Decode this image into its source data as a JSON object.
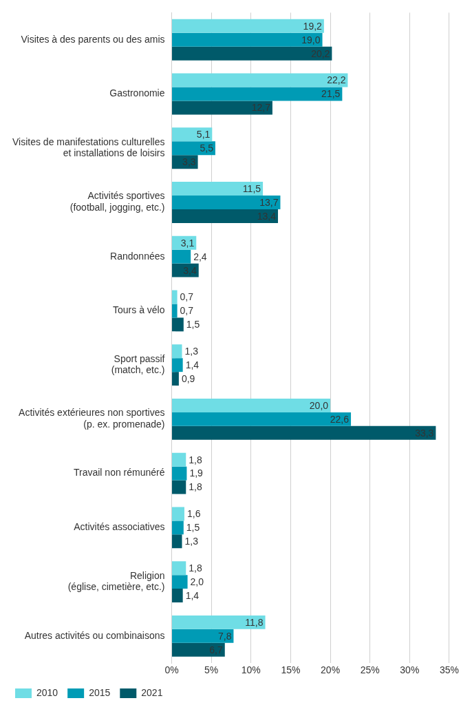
{
  "chart_data": {
    "type": "bar",
    "orientation": "horizontal",
    "categories": [
      "Visites à des parents ou des amis",
      "Gastronomie",
      "Visites de manifestations culturelles\net installations de loisirs",
      "Activités sportives\n(football, jogging, etc.)",
      "Randonnées",
      "Tours à vélo",
      "Sport passif\n(match, etc.)",
      "Activités extérieures non sportives\n(p. ex. promenade)",
      "Travail non rémunéré",
      "Activités associatives",
      "Religion\n(église, cimetière, etc.)",
      "Autres activités ou combinaisons"
    ],
    "series": [
      {
        "name": "2010",
        "color": "#6fdde5",
        "values": [
          19.2,
          22.2,
          5.1,
          11.5,
          3.1,
          0.7,
          1.3,
          20.0,
          1.8,
          1.6,
          1.8,
          11.8
        ],
        "value_labels": [
          "19,2",
          "22,2",
          "5,1",
          "11,5",
          "3,1",
          "0,7",
          "1,3",
          "20,0",
          "1,8",
          "1,6",
          "1,8",
          "11,8"
        ]
      },
      {
        "name": "2015",
        "color": "#009bb5",
        "values": [
          19.0,
          21.5,
          5.5,
          13.7,
          2.4,
          0.7,
          1.4,
          22.6,
          1.9,
          1.5,
          2.0,
          7.8
        ],
        "value_labels": [
          "19,0",
          "21,5",
          "5,5",
          "13,7",
          "2,4",
          "0,7",
          "1,4",
          "22,6",
          "1,9",
          "1,5",
          "2,0",
          "7,8"
        ]
      },
      {
        "name": "2021",
        "color": "#005a6a",
        "values": [
          20.2,
          12.7,
          3.3,
          13.4,
          3.4,
          1.5,
          0.9,
          33.3,
          1.8,
          1.3,
          1.4,
          6.7
        ],
        "value_labels": [
          "20,2",
          "12,7",
          "3,3",
          "13,4",
          "3,4",
          "1,5",
          "0,9",
          "33,3",
          "1,8",
          "1,3",
          "1,4",
          "6,7"
        ]
      }
    ],
    "xlim": [
      0,
      35
    ],
    "xticks": [
      {
        "value": 0,
        "label": "0%"
      },
      {
        "value": 5,
        "label": "5%"
      },
      {
        "value": 10,
        "label": "10%"
      },
      {
        "value": 15,
        "label": "15%"
      },
      {
        "value": 20,
        "label": "20%"
      },
      {
        "value": 25,
        "label": "25%"
      },
      {
        "value": 30,
        "label": "30%"
      },
      {
        "value": 35,
        "label": "35%"
      }
    ],
    "grid": "x",
    "legend": "bottom left"
  }
}
